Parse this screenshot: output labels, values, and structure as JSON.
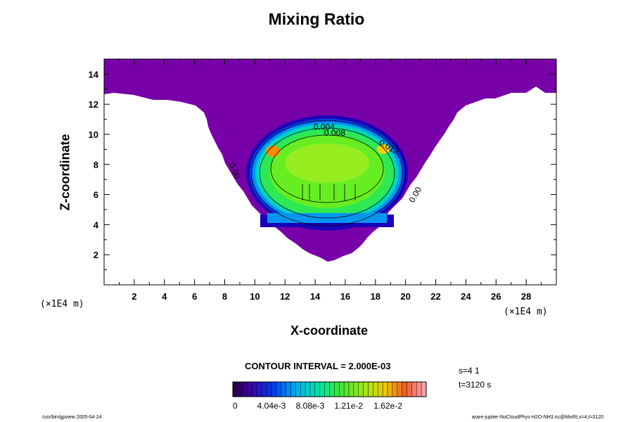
{
  "chart_data": {
    "type": "contour",
    "title": "Mixing Ratio",
    "xlabel": "X-coordinate",
    "ylabel": "Z-coordinate",
    "x_unit": "(×1E4 m)",
    "y_unit": "(×1E4 m)",
    "xlim": [
      0,
      30
    ],
    "ylim": [
      0,
      15
    ],
    "x_ticks": [
      2,
      4,
      6,
      8,
      10,
      12,
      14,
      16,
      18,
      20,
      22,
      24,
      26,
      28
    ],
    "y_ticks": [
      2,
      4,
      6,
      8,
      10,
      12,
      14
    ],
    "contour_labels": [
      {
        "text": "0.004",
        "x": 14.6,
        "z": 10.3,
        "rotate": 0
      },
      {
        "text": "0.008",
        "x": 15.3,
        "z": 9.9,
        "rotate": 0
      },
      {
        "text": "0.012",
        "x": 18.8,
        "z": 9.0,
        "rotate": 30
      },
      {
        "text": "0.00",
        "x": 8.5,
        "z": 7.5,
        "rotate": 65
      },
      {
        "text": "0.00",
        "x": 20.8,
        "z": 5.9,
        "rotate": -60
      }
    ],
    "colorbar": {
      "tick_labels": [
        "0",
        "4.04e-3",
        "8.08e-3",
        "1.21e-2",
        "1.62e-2"
      ],
      "tick_values": [
        0,
        0.00404,
        0.00808,
        0.0121,
        0.0162
      ],
      "max": 0.0202
    },
    "contour_interval_text": "CONTOUR INTERVAL = 2.000E-03"
  },
  "annotations": {
    "step": "s=4 1",
    "time": "t=3120 s",
    "footer_left": "/usr/bin/gpview 2005-04-24",
    "footer_right": "arare-jupiter-NoCloudPhys-H2O-NH3.nc@MixRt,s=4,t=3120"
  },
  "colors": {
    "background_purple": "#7800a8",
    "max_orange": "#ff8c00"
  }
}
